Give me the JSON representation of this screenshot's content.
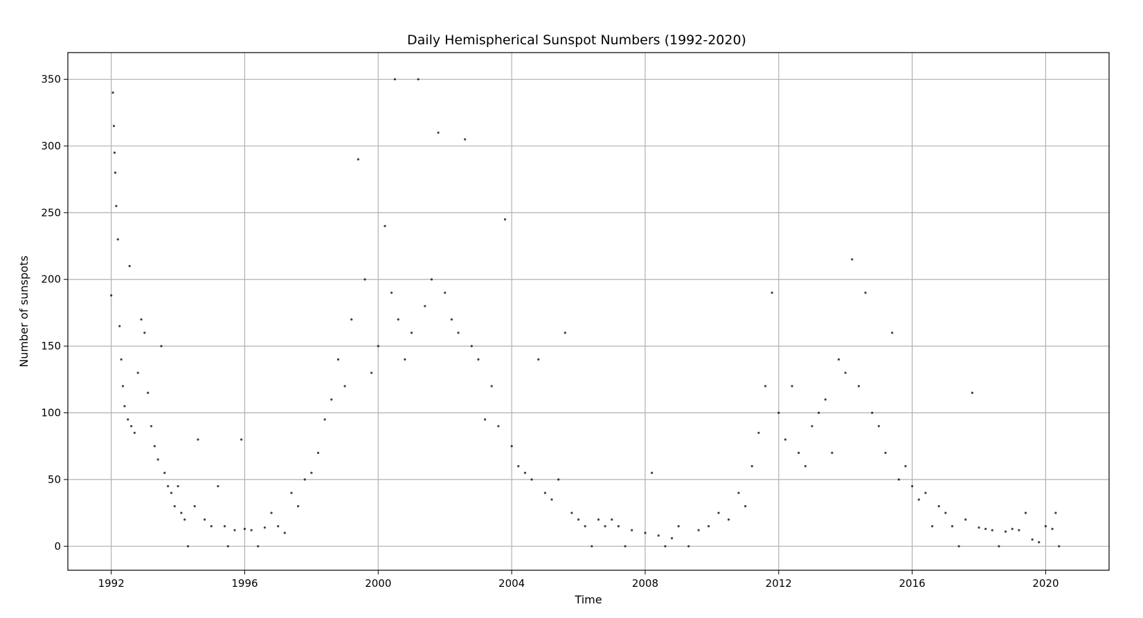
{
  "chart_data": {
    "type": "scatter",
    "title": "Daily Hemispherical Sunspot Numbers (1992-2020)",
    "xlabel": "Time",
    "ylabel": "Number of sunspots",
    "xlim": [
      1990.7,
      2021.9
    ],
    "ylim": [
      -18,
      370
    ],
    "xticks": [
      1992,
      1996,
      2000,
      2004,
      2008,
      2012,
      2016,
      2020
    ],
    "xtick_labels": [
      "1992",
      "1996",
      "2000",
      "2004",
      "2008",
      "2012",
      "2016",
      "2020"
    ],
    "yticks": [
      0,
      50,
      100,
      150,
      200,
      250,
      300,
      350
    ],
    "ytick_labels": [
      "0",
      "50",
      "100",
      "150",
      "200",
      "250",
      "300",
      "350"
    ],
    "grid": true,
    "marker_color": "#000000",
    "series": [
      {
        "points": [
          [
            1992.0,
            188
          ],
          [
            1992.05,
            340
          ],
          [
            1992.08,
            315
          ],
          [
            1992.1,
            295
          ],
          [
            1992.12,
            280
          ],
          [
            1992.15,
            255
          ],
          [
            1992.2,
            230
          ],
          [
            1992.25,
            165
          ],
          [
            1992.3,
            140
          ],
          [
            1992.35,
            120
          ],
          [
            1992.4,
            105
          ],
          [
            1992.5,
            95
          ],
          [
            1992.55,
            210
          ],
          [
            1992.6,
            90
          ],
          [
            1992.7,
            85
          ],
          [
            1992.8,
            130
          ],
          [
            1992.9,
            170
          ],
          [
            1993.0,
            160
          ],
          [
            1993.1,
            115
          ],
          [
            1993.2,
            90
          ],
          [
            1993.3,
            75
          ],
          [
            1993.4,
            65
          ],
          [
            1993.5,
            150
          ],
          [
            1993.6,
            55
          ],
          [
            1993.7,
            45
          ],
          [
            1993.8,
            40
          ],
          [
            1993.9,
            30
          ],
          [
            1994.0,
            45
          ],
          [
            1994.1,
            25
          ],
          [
            1994.2,
            20
          ],
          [
            1994.3,
            0
          ],
          [
            1994.5,
            30
          ],
          [
            1994.6,
            80
          ],
          [
            1994.8,
            20
          ],
          [
            1995.0,
            15
          ],
          [
            1995.2,
            45
          ],
          [
            1995.4,
            15
          ],
          [
            1995.5,
            0
          ],
          [
            1995.7,
            12
          ],
          [
            1995.9,
            80
          ],
          [
            1996.0,
            13
          ],
          [
            1996.2,
            12
          ],
          [
            1996.4,
            0
          ],
          [
            1996.6,
            14
          ],
          [
            1996.8,
            25
          ],
          [
            1997.0,
            15
          ],
          [
            1997.2,
            10
          ],
          [
            1997.4,
            40
          ],
          [
            1997.6,
            30
          ],
          [
            1997.8,
            50
          ],
          [
            1998.0,
            55
          ],
          [
            1998.2,
            70
          ],
          [
            1998.4,
            95
          ],
          [
            1998.6,
            110
          ],
          [
            1998.8,
            140
          ],
          [
            1999.0,
            120
          ],
          [
            1999.2,
            170
          ],
          [
            1999.4,
            290
          ],
          [
            1999.6,
            200
          ],
          [
            1999.8,
            130
          ],
          [
            2000.0,
            150
          ],
          [
            2000.2,
            240
          ],
          [
            2000.4,
            190
          ],
          [
            2000.5,
            350
          ],
          [
            2000.6,
            170
          ],
          [
            2000.8,
            140
          ],
          [
            2001.0,
            160
          ],
          [
            2001.2,
            350
          ],
          [
            2001.4,
            180
          ],
          [
            2001.6,
            200
          ],
          [
            2001.8,
            310
          ],
          [
            2002.0,
            190
          ],
          [
            2002.2,
            170
          ],
          [
            2002.4,
            160
          ],
          [
            2002.6,
            305
          ],
          [
            2002.8,
            150
          ],
          [
            2003.0,
            140
          ],
          [
            2003.2,
            95
          ],
          [
            2003.4,
            120
          ],
          [
            2003.6,
            90
          ],
          [
            2003.8,
            245
          ],
          [
            2004.0,
            75
          ],
          [
            2004.2,
            60
          ],
          [
            2004.4,
            55
          ],
          [
            2004.6,
            50
          ],
          [
            2004.8,
            140
          ],
          [
            2005.0,
            40
          ],
          [
            2005.2,
            35
          ],
          [
            2005.4,
            50
          ],
          [
            2005.6,
            160
          ],
          [
            2005.8,
            25
          ],
          [
            2006.0,
            20
          ],
          [
            2006.2,
            15
          ],
          [
            2006.4,
            0
          ],
          [
            2006.6,
            20
          ],
          [
            2006.8,
            15
          ],
          [
            2007.0,
            20
          ],
          [
            2007.2,
            15
          ],
          [
            2007.4,
            0
          ],
          [
            2007.6,
            12
          ],
          [
            2008.0,
            10
          ],
          [
            2008.2,
            55
          ],
          [
            2008.4,
            8
          ],
          [
            2008.6,
            0
          ],
          [
            2008.8,
            6
          ],
          [
            2009.0,
            15
          ],
          [
            2009.3,
            0
          ],
          [
            2009.6,
            12
          ],
          [
            2009.9,
            15
          ],
          [
            2010.2,
            25
          ],
          [
            2010.5,
            20
          ],
          [
            2010.8,
            40
          ],
          [
            2011.0,
            30
          ],
          [
            2011.2,
            60
          ],
          [
            2011.4,
            85
          ],
          [
            2011.6,
            120
          ],
          [
            2011.8,
            190
          ],
          [
            2012.0,
            100
          ],
          [
            2012.2,
            80
          ],
          [
            2012.4,
            120
          ],
          [
            2012.6,
            70
          ],
          [
            2012.8,
            60
          ],
          [
            2013.0,
            90
          ],
          [
            2013.2,
            100
          ],
          [
            2013.4,
            110
          ],
          [
            2013.6,
            70
          ],
          [
            2013.8,
            140
          ],
          [
            2014.0,
            130
          ],
          [
            2014.2,
            215
          ],
          [
            2014.4,
            120
          ],
          [
            2014.6,
            190
          ],
          [
            2014.8,
            100
          ],
          [
            2015.0,
            90
          ],
          [
            2015.2,
            70
          ],
          [
            2015.4,
            160
          ],
          [
            2015.6,
            50
          ],
          [
            2015.8,
            60
          ],
          [
            2016.0,
            45
          ],
          [
            2016.2,
            35
          ],
          [
            2016.4,
            40
          ],
          [
            2016.6,
            15
          ],
          [
            2016.8,
            30
          ],
          [
            2017.0,
            25
          ],
          [
            2017.2,
            15
          ],
          [
            2017.4,
            0
          ],
          [
            2017.6,
            20
          ],
          [
            2017.8,
            115
          ],
          [
            2018.0,
            14
          ],
          [
            2018.2,
            13
          ],
          [
            2018.4,
            12
          ],
          [
            2018.6,
            0
          ],
          [
            2018.8,
            11
          ],
          [
            2019.0,
            13
          ],
          [
            2019.2,
            12
          ],
          [
            2019.4,
            25
          ],
          [
            2019.6,
            5
          ],
          [
            2019.8,
            3
          ],
          [
            2020.0,
            15
          ],
          [
            2020.2,
            13
          ],
          [
            2020.3,
            25
          ],
          [
            2020.4,
            0
          ]
        ]
      }
    ]
  }
}
